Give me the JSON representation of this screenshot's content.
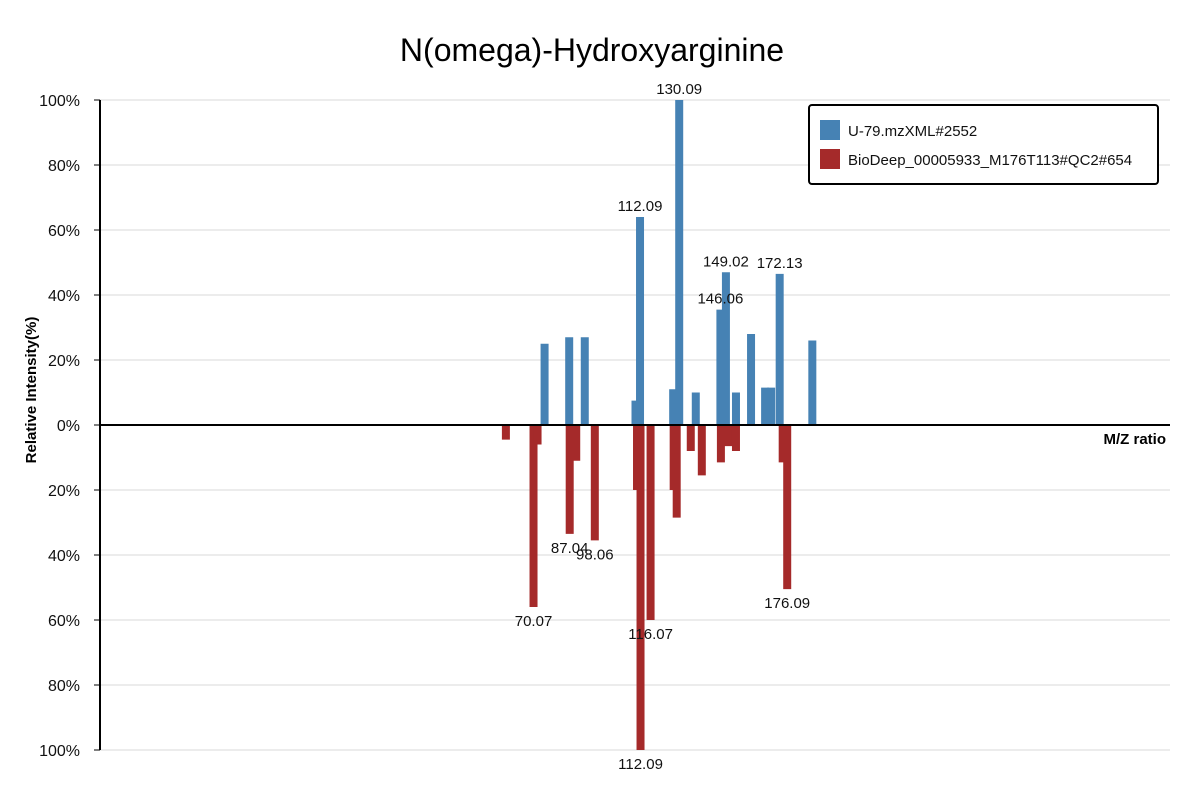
{
  "chart_data": {
    "type": "bar",
    "title": "N(omega)-Hydroxyarginine",
    "xlabel": "M/Z ratio",
    "ylabel": "Relative Intensity(%)",
    "top_ticks": [
      "100%",
      "80%",
      "60%",
      "40%",
      "20%"
    ],
    "zero_tick": "0%",
    "bottom_ticks": [
      "20%",
      "40%",
      "60%",
      "80%",
      "100%"
    ],
    "xlim": [
      0,
      213
    ],
    "ylim": [
      -100,
      100
    ],
    "grid": true,
    "legend_position": "top-right",
    "series": [
      {
        "name": "U-79.mzXML#2552",
        "color": "#4682b4",
        "direction": "up",
        "points": [
          {
            "x": 88.5,
            "y": 25
          },
          {
            "x": 93.4,
            "y": 27
          },
          {
            "x": 96.5,
            "y": 27
          },
          {
            "x": 106.6,
            "y": 7.5
          },
          {
            "x": 107.5,
            "y": 64,
            "label": "112.09"
          },
          {
            "x": 114.1,
            "y": 11
          },
          {
            "x": 115.3,
            "y": 100,
            "label": "130.09"
          },
          {
            "x": 118.6,
            "y": 10
          },
          {
            "x": 123.5,
            "y": 35.5,
            "label": "146.06"
          },
          {
            "x": 124.6,
            "y": 47,
            "label": "149.02"
          },
          {
            "x": 126.6,
            "y": 10
          },
          {
            "x": 129.6,
            "y": 28
          },
          {
            "x": 132.4,
            "y": 11.5
          },
          {
            "x": 133.6,
            "y": 11.5
          },
          {
            "x": 135.3,
            "y": 46.5,
            "label": "172.13"
          },
          {
            "x": 141.8,
            "y": 26
          }
        ]
      },
      {
        "name": "BioDeep_00005933_M176T113#QC2#654",
        "color": "#a52a2a",
        "direction": "down",
        "points": [
          {
            "x": 80.8,
            "y": 4.5
          },
          {
            "x": 86.3,
            "y": 56,
            "label": "70.07"
          },
          {
            "x": 87.1,
            "y": 6
          },
          {
            "x": 93.5,
            "y": 33.5,
            "label": "87.04"
          },
          {
            "x": 94.8,
            "y": 11
          },
          {
            "x": 98.5,
            "y": 35.5,
            "label": "98.06"
          },
          {
            "x": 106.9,
            "y": 20
          },
          {
            "x": 107.6,
            "y": 100,
            "label": "112.09"
          },
          {
            "x": 109.6,
            "y": 60,
            "label": "116.07"
          },
          {
            "x": 114.2,
            "y": 20
          },
          {
            "x": 114.8,
            "y": 28.5
          },
          {
            "x": 117.6,
            "y": 8
          },
          {
            "x": 119.8,
            "y": 15.5
          },
          {
            "x": 123.6,
            "y": 11.5
          },
          {
            "x": 125.1,
            "y": 6.5
          },
          {
            "x": 126.6,
            "y": 8
          },
          {
            "x": 135.9,
            "y": 11.5
          },
          {
            "x": 136.8,
            "y": 50.5,
            "label": "176.09"
          }
        ]
      }
    ]
  }
}
